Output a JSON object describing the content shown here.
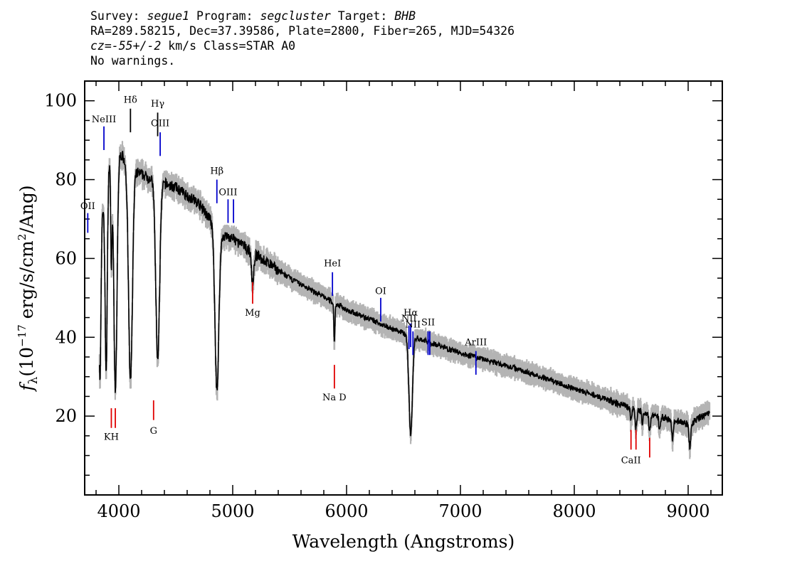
{
  "header": {
    "survey_label": "Survey:",
    "survey": "segue1",
    "program_label": "Program:",
    "program": "segcluster",
    "target_label": "Target:",
    "target": "BHB",
    "line2": "RA=289.58215, Dec=37.39586, Plate=2800, Fiber=265, MJD=54326",
    "cz_label": "cz",
    "cz_value": "=-55+/-2",
    "cz_unit": " km/s",
    "class_text": "Class=STAR A0",
    "warnings": "No warnings."
  },
  "chart_data": {
    "type": "line",
    "xlabel": "Wavelength (Angstroms)",
    "ylabel": "f_λ (10^-17 erg/s/cm^2/Ang)",
    "ylabel_parts": {
      "f": "f",
      "lambda": "λ",
      "pre": "(10",
      "exp": "−17",
      "mid": " erg/s/cm",
      "exp2": "2",
      "post": "/Ang)"
    },
    "xlim": [
      3700,
      9300
    ],
    "ylim": [
      0,
      105
    ],
    "x_ticks": [
      4000,
      5000,
      6000,
      7000,
      8000,
      9000
    ],
    "y_ticks": [
      20,
      40,
      60,
      80,
      100
    ],
    "colors": {
      "spectrum": "#000000",
      "error": "#b4b4b4",
      "emission": "#0000cc",
      "absorption": "#e00000"
    },
    "continuum": [
      [
        3830,
        64
      ],
      [
        3900,
        85
      ],
      [
        4000,
        87
      ],
      [
        4150,
        82
      ],
      [
        4300,
        80
      ],
      [
        4500,
        78
      ],
      [
        4700,
        74
      ],
      [
        4900,
        66
      ],
      [
        5000,
        65
      ],
      [
        5500,
        55
      ],
      [
        6000,
        47
      ],
      [
        6500,
        41
      ],
      [
        7000,
        36
      ],
      [
        7500,
        32
      ],
      [
        8000,
        27
      ],
      [
        8500,
        22
      ],
      [
        9000,
        18
      ],
      [
        9200,
        21
      ]
    ],
    "absorption_features": [
      {
        "center": 3835,
        "depth": 36,
        "width": 8
      },
      {
        "center": 3889,
        "depth": 50,
        "width": 10
      },
      {
        "center": 3934,
        "depth": 25,
        "width": 6
      },
      {
        "center": 3970,
        "depth": 60,
        "width": 14
      },
      {
        "center": 4102,
        "depth": 55,
        "width": 17
      },
      {
        "center": 4341,
        "depth": 45,
        "width": 17
      },
      {
        "center": 4861,
        "depth": 41,
        "width": 17
      },
      {
        "center": 5175,
        "depth": 8,
        "width": 10
      },
      {
        "center": 5893,
        "depth": 10,
        "width": 5
      },
      {
        "center": 6563,
        "depth": 25,
        "width": 15
      },
      {
        "center": 8498,
        "depth": 3,
        "width": 6
      },
      {
        "center": 8542,
        "depth": 5,
        "width": 7
      },
      {
        "center": 8598,
        "depth": 3,
        "width": 6
      },
      {
        "center": 8662,
        "depth": 5,
        "width": 7
      },
      {
        "center": 8750,
        "depth": 4,
        "width": 7
      },
      {
        "center": 8863,
        "depth": 5,
        "width": 8
      },
      {
        "center": 9015,
        "depth": 6,
        "width": 8
      }
    ],
    "emission_lines": [
      {
        "label": "OII",
        "wavelength": 3727,
        "y_low": 66.5,
        "y_high": 71.5,
        "label_y": 72.5
      },
      {
        "label": "NeIII",
        "wavelength": 3869,
        "y_low": 87.5,
        "y_high": 93.5,
        "label_y": 94.5
      },
      {
        "label": "Hδ",
        "wavelength": 4102,
        "y_low": 92,
        "y_high": 98,
        "label_y": 99.5,
        "color": "#000000"
      },
      {
        "label": "Hγ",
        "wavelength": 4341,
        "y_low": 91,
        "y_high": 97,
        "label_y": 98.5,
        "color": "#000000"
      },
      {
        "label": "OIII",
        "wavelength": 4363,
        "y_low": 86,
        "y_high": 92,
        "label_y": 93.5
      },
      {
        "label": "Hβ",
        "wavelength": 4861,
        "y_low": 74,
        "y_high": 80,
        "label_y": 81.5
      },
      {
        "label": "OIII",
        "wavelength": 4959,
        "y_low": 69,
        "y_high": 75,
        "label_y": 76
      },
      {
        "label": "",
        "wavelength": 5007,
        "y_low": 69,
        "y_high": 75
      },
      {
        "label": "HeI",
        "wavelength": 5876,
        "y_low": 50.5,
        "y_high": 56.5,
        "label_y": 58
      },
      {
        "label": "OI",
        "wavelength": 6300,
        "y_low": 44,
        "y_high": 50,
        "label_y": 51
      },
      {
        "label": "NII",
        "wavelength": 6548,
        "y_low": 37,
        "y_high": 43,
        "label_y": 44
      },
      {
        "label": "Hα",
        "wavelength": 6563,
        "y_low": 37.5,
        "y_high": 43.5,
        "label_y": 45.5
      },
      {
        "label": "NII",
        "wavelength": 6583,
        "y_low": 35.5,
        "y_high": 41.5,
        "label_y": 42.5
      },
      {
        "label": "SII",
        "wavelength": 6716,
        "y_low": 35.5,
        "y_high": 41.5,
        "label_y": 43
      },
      {
        "label": "",
        "wavelength": 6731,
        "y_low": 35.5,
        "y_high": 41.5
      },
      {
        "label": "ArIII",
        "wavelength": 7136,
        "y_low": 30.5,
        "y_high": 36.5,
        "label_y": 38
      }
    ],
    "absorption_lines": [
      {
        "label": "Mg",
        "wavelength": 5175,
        "y_low": 48.5,
        "y_high": 54,
        "label_y": 45.5
      },
      {
        "label": "Na D",
        "wavelength": 5893,
        "y_low": 27,
        "y_high": 33,
        "label_y": 24
      },
      {
        "label": "KH",
        "wavelength": 3934,
        "y_low": 17,
        "y_high": 22,
        "label_y": 14
      },
      {
        "label": "",
        "wavelength": 3969,
        "y_low": 17,
        "y_high": 22
      },
      {
        "label": "G",
        "wavelength": 4305,
        "y_low": 19,
        "y_high": 24,
        "label_y": 15.5
      },
      {
        "label": "CaII",
        "wavelength": 8498,
        "y_low": 11.5,
        "y_high": 16.5,
        "label_y": 8
      },
      {
        "label": "",
        "wavelength": 8542,
        "y_low": 11.5,
        "y_high": 16.5
      },
      {
        "label": "",
        "wavelength": 8662,
        "y_low": 9.5,
        "y_high": 14.5
      }
    ]
  }
}
